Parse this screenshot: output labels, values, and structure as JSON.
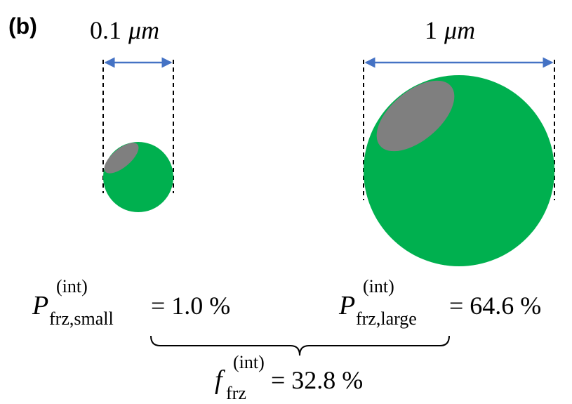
{
  "panel_label": "(b)",
  "particles": [
    {
      "size_value": "0.1",
      "size_unit": "μm",
      "symbol": "P",
      "superscript": "(int)",
      "subscript": "frz,small",
      "equation_rest": "= 1.0 %"
    },
    {
      "size_value": "1",
      "size_unit": "μm",
      "symbol": "P",
      "superscript": "(int)",
      "subscript": "frz,large",
      "equation_rest": "= 64.6 %"
    }
  ],
  "combined": {
    "symbol": "f",
    "superscript": "(int)",
    "subscript": "frz",
    "equation_rest": "= 32.8 %"
  }
}
